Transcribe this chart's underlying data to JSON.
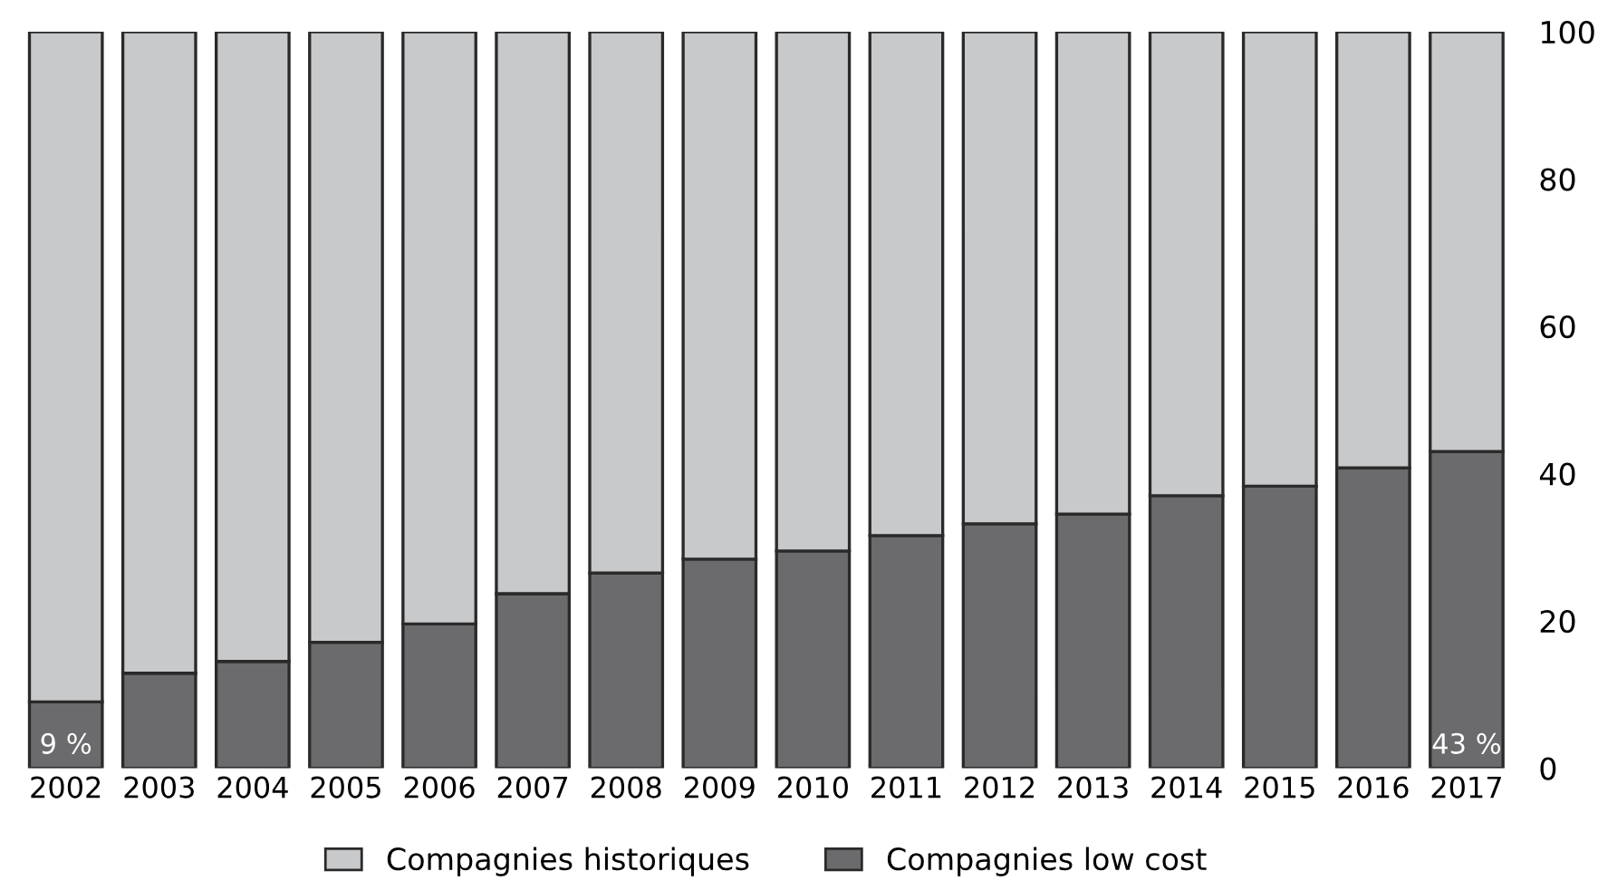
{
  "chart_data": {
    "type": "bar",
    "stacked": true,
    "categories": [
      "2002",
      "2003",
      "2004",
      "2005",
      "2006",
      "2007",
      "2008",
      "2009",
      "2010",
      "2011",
      "2012",
      "2013",
      "2014",
      "2015",
      "2016",
      "2017"
    ],
    "series": [
      {
        "name": "Compagnies low cost",
        "color": "#6b6b6d",
        "values": [
          9,
          12.9,
          14.5,
          17.1,
          19.6,
          23.7,
          26.5,
          28.4,
          29.5,
          31.6,
          33.2,
          34.5,
          37,
          38.3,
          40.8,
          43
        ],
        "value_labels": [
          "9 %",
          null,
          null,
          null,
          null,
          null,
          null,
          null,
          null,
          null,
          null,
          null,
          null,
          null,
          null,
          "43 %"
        ]
      },
      {
        "name": "Compagnies historiques",
        "color": "#c8c9cb",
        "values": [
          91,
          87.1,
          85.5,
          82.9,
          80.4,
          76.3,
          73.5,
          71.6,
          70.5,
          68.4,
          66.8,
          65.5,
          63,
          61.7,
          59.2,
          57
        ]
      }
    ],
    "ylim": [
      0,
      100
    ],
    "yticks": [
      0,
      20,
      40,
      60,
      80,
      100
    ],
    "grid": false,
    "legend": "bottom"
  }
}
